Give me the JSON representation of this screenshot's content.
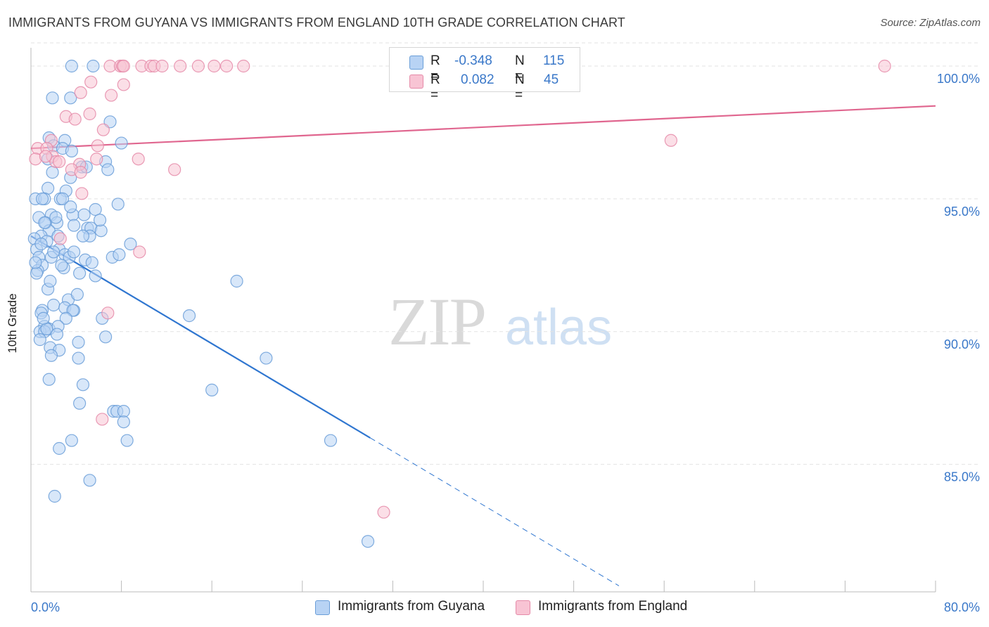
{
  "title": "IMMIGRANTS FROM GUYANA VS IMMIGRANTS FROM ENGLAND 10TH GRADE CORRELATION CHART",
  "source": "Source: ZipAtlas.com",
  "watermark": {
    "zip": "ZIP",
    "atlas": "atlas"
  },
  "stats": [
    {
      "r_label": "R =",
      "r_value": "-0.348",
      "n_label": "N =",
      "n_value": "115",
      "fill": "#b8d3f4",
      "stroke": "#6a9ed8"
    },
    {
      "r_label": "R =",
      "r_value": "0.082",
      "n_label": "N =",
      "n_value": "45",
      "fill": "#f8c4d4",
      "stroke": "#e58aa8"
    }
  ],
  "chart_data": {
    "type": "scatter",
    "xlabel": "",
    "ylabel": "10th Grade",
    "xlim": [
      0,
      80
    ],
    "ylim": [
      80.2,
      100.9
    ],
    "x_tick_labels": [
      "0.0%",
      "80.0%"
    ],
    "y_ticks": [
      85,
      90,
      95,
      100
    ],
    "y_tick_labels": [
      "85.0%",
      "90.0%",
      "95.0%",
      "100.0%"
    ],
    "grid": true,
    "legend_position": "bottom",
    "series": [
      {
        "name": "Immigrants from Guyana",
        "color": "#6a9ed8",
        "fill": "#b8d3f4",
        "trend": {
          "x0": 0,
          "y0": 93.6,
          "x1": 30,
          "y1": 86.0,
          "dash_to_x": 52
        },
        "points": [
          [
            3.6,
            100
          ],
          [
            5.5,
            100
          ],
          [
            1.9,
            98.8
          ],
          [
            3.5,
            98.8
          ],
          [
            7,
            97.9
          ],
          [
            1.6,
            97.3
          ],
          [
            3,
            97.2
          ],
          [
            8,
            97.1
          ],
          [
            2,
            97
          ],
          [
            2.8,
            96.9
          ],
          [
            6.6,
            96.4
          ],
          [
            6.8,
            96.1
          ],
          [
            4.5,
            96.2
          ],
          [
            1.9,
            96
          ],
          [
            3.5,
            95.8
          ],
          [
            1.5,
            95.4
          ],
          [
            3.1,
            95.3
          ],
          [
            0.4,
            95
          ],
          [
            1.2,
            95
          ],
          [
            2.6,
            95
          ],
          [
            2.8,
            95
          ],
          [
            7.7,
            94.8
          ],
          [
            1.8,
            94.4
          ],
          [
            3.7,
            94.4
          ],
          [
            4.7,
            94.4
          ],
          [
            0.7,
            94.3
          ],
          [
            2.3,
            94.1
          ],
          [
            1.3,
            94.1
          ],
          [
            3.8,
            94
          ],
          [
            5,
            93.9
          ],
          [
            5.3,
            93.9
          ],
          [
            6.2,
            93.8
          ],
          [
            1.6,
            93.8
          ],
          [
            0.9,
            93.6
          ],
          [
            5.2,
            93.6
          ],
          [
            4.6,
            93.6
          ],
          [
            0.3,
            93.5
          ],
          [
            1.4,
            93.4
          ],
          [
            8.8,
            93.3
          ],
          [
            0.5,
            93.1
          ],
          [
            2.5,
            93.1
          ],
          [
            0.7,
            92.8
          ],
          [
            1.8,
            92.8
          ],
          [
            3,
            92.9
          ],
          [
            7.2,
            92.8
          ],
          [
            3.4,
            92.8
          ],
          [
            4.8,
            92.7
          ],
          [
            1,
            92.5
          ],
          [
            2.9,
            92.4
          ],
          [
            4.3,
            92.2
          ],
          [
            0.6,
            92.3
          ],
          [
            0.5,
            92.2
          ],
          [
            5.7,
            92.1
          ],
          [
            18.2,
            91.9
          ],
          [
            1.5,
            91.6
          ],
          [
            3.3,
            91.2
          ],
          [
            2,
            91
          ],
          [
            3,
            90.9
          ],
          [
            3.8,
            90.8
          ],
          [
            1,
            90.8
          ],
          [
            3.7,
            90.8
          ],
          [
            0.9,
            90.7
          ],
          [
            14,
            90.6
          ],
          [
            6.3,
            90.5
          ],
          [
            3.1,
            90.5
          ],
          [
            1.2,
            90.2
          ],
          [
            1.6,
            90.1
          ],
          [
            0.8,
            90
          ],
          [
            1.2,
            90
          ],
          [
            1.4,
            90.1
          ],
          [
            6.6,
            89.8
          ],
          [
            0.8,
            89.7
          ],
          [
            1.7,
            89.4
          ],
          [
            2.5,
            89.3
          ],
          [
            1.8,
            89.1
          ],
          [
            4.2,
            89
          ],
          [
            20.8,
            89
          ],
          [
            1.6,
            88.2
          ],
          [
            4.6,
            88
          ],
          [
            16,
            87.8
          ],
          [
            4.3,
            87.3
          ],
          [
            7.3,
            87
          ],
          [
            7.6,
            87
          ],
          [
            8.2,
            87
          ],
          [
            8.2,
            86.6
          ],
          [
            8.5,
            85.9
          ],
          [
            3.6,
            85.9
          ],
          [
            26.5,
            85.9
          ],
          [
            2.5,
            85.6
          ],
          [
            5.2,
            84.4
          ],
          [
            2.1,
            83.8
          ],
          [
            29.8,
            82.1
          ],
          [
            1.5,
            96.5
          ],
          [
            4.9,
            96.2
          ],
          [
            3.6,
            96.8
          ],
          [
            1,
            95
          ],
          [
            2.2,
            94.3
          ],
          [
            5.7,
            94.6
          ],
          [
            6.1,
            94.2
          ],
          [
            1.2,
            94.1
          ],
          [
            3.8,
            93
          ],
          [
            2.4,
            93.6
          ],
          [
            0.9,
            93.3
          ],
          [
            2.7,
            92.5
          ],
          [
            5.4,
            92.6
          ],
          [
            7.8,
            92.9
          ],
          [
            1.7,
            91.9
          ],
          [
            2.4,
            90.2
          ],
          [
            4.2,
            89.6
          ],
          [
            0.4,
            92.6
          ],
          [
            1.1,
            90.5
          ],
          [
            2.3,
            89.9
          ],
          [
            3.5,
            94.7
          ],
          [
            2,
            93
          ],
          [
            4.1,
            91.4
          ]
        ]
      },
      {
        "name": "Immigrants from England",
        "color": "#e58aa8",
        "fill": "#f8c4d4",
        "trend": {
          "x0": 0,
          "y0": 96.9,
          "x1": 80,
          "y1": 98.5
        },
        "points": [
          [
            7,
            100
          ],
          [
            7.9,
            100
          ],
          [
            8.1,
            100
          ],
          [
            8.2,
            100
          ],
          [
            9.8,
            100
          ],
          [
            10.6,
            100
          ],
          [
            10.9,
            100
          ],
          [
            11.6,
            100
          ],
          [
            13.2,
            100
          ],
          [
            14.8,
            100
          ],
          [
            16.2,
            100
          ],
          [
            17.3,
            100
          ],
          [
            18.8,
            100
          ],
          [
            32.7,
            100
          ],
          [
            75.5,
            100
          ],
          [
            5.3,
            99.4
          ],
          [
            8.2,
            99.3
          ],
          [
            7.1,
            98.9
          ],
          [
            4.4,
            99
          ],
          [
            5.2,
            98.2
          ],
          [
            3.1,
            98.1
          ],
          [
            3.9,
            98
          ],
          [
            6.4,
            97.6
          ],
          [
            1.8,
            97.2
          ],
          [
            56.6,
            97.2
          ],
          [
            5.9,
            97
          ],
          [
            0.6,
            96.9
          ],
          [
            1.4,
            96.9
          ],
          [
            1.9,
            96.6
          ],
          [
            2.2,
            96.4
          ],
          [
            9.5,
            96.5
          ],
          [
            5.8,
            96.5
          ],
          [
            0.4,
            96.5
          ],
          [
            2.5,
            96.4
          ],
          [
            4.3,
            96.3
          ],
          [
            3.6,
            96.1
          ],
          [
            12.7,
            96.1
          ],
          [
            4.4,
            96
          ],
          [
            4.5,
            95.2
          ],
          [
            2.6,
            93.5
          ],
          [
            9.6,
            93
          ],
          [
            6.8,
            90.7
          ],
          [
            6.3,
            86.7
          ],
          [
            31.2,
            83.2
          ],
          [
            1.3,
            96.6
          ]
        ]
      }
    ]
  }
}
